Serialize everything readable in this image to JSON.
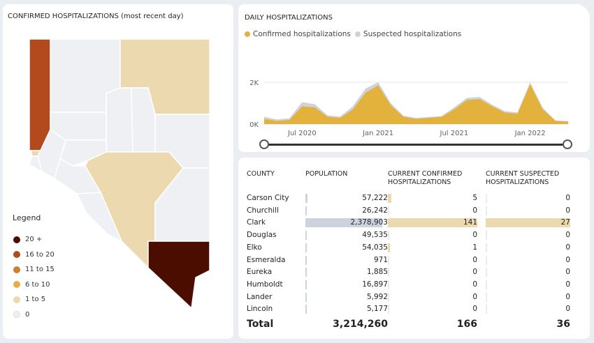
{
  "map": {
    "title": "CONFIRMED HOSPITALIZATIONS (most recent day)",
    "legend_title": "Legend",
    "legend": [
      {
        "label": "20 +",
        "color": "#4a0d00"
      },
      {
        "label": "16 to 20",
        "color": "#b34a1d"
      },
      {
        "label": "11 to 15",
        "color": "#c9822f"
      },
      {
        "label": "6 to 10",
        "color": "#e2ad4a"
      },
      {
        "label": "1 to 5",
        "color": "#ecd9b0"
      },
      {
        "label": "0",
        "color": "#eef0f3"
      }
    ]
  },
  "chart": {
    "title": "DAILY HOSPITALIZATIONS",
    "legend": [
      {
        "label": "Confirmed hospitalizations",
        "color": "#e3b23c"
      },
      {
        "label": "Suspected hospitalizations",
        "color": "#cfd2d8"
      }
    ]
  },
  "chart_data": {
    "type": "area",
    "title": "DAILY HOSPITALIZATIONS",
    "y_ticks": [
      "0K",
      "2K"
    ],
    "x_ticks": [
      "Jul 2020",
      "Jan 2021",
      "Jul 2021",
      "Jan 2022"
    ],
    "ylim": [
      0,
      2400
    ],
    "x": [
      "2020-04",
      "2020-05",
      "2020-06",
      "2020-07",
      "2020-08",
      "2020-09",
      "2020-10",
      "2020-11",
      "2020-12",
      "2021-01",
      "2021-02",
      "2021-03",
      "2021-04",
      "2021-05",
      "2021-06",
      "2021-07",
      "2021-08",
      "2021-09",
      "2021-10",
      "2021-11",
      "2021-12",
      "2022-01",
      "2022-02",
      "2022-03",
      "2022-04"
    ],
    "series": [
      {
        "name": "Confirmed hospitalizations",
        "values": [
          250,
          150,
          200,
          850,
          800,
          350,
          300,
          700,
          1500,
          1850,
          900,
          350,
          250,
          300,
          350,
          700,
          1150,
          1200,
          850,
          550,
          500,
          1900,
          700,
          150,
          120
        ]
      },
      {
        "name": "Suspected hospitalizations",
        "values": [
          350,
          220,
          280,
          1050,
          950,
          420,
          360,
          850,
          1700,
          2000,
          1000,
          400,
          300,
          340,
          380,
          800,
          1250,
          1300,
          930,
          620,
          560,
          2000,
          780,
          180,
          140
        ]
      }
    ]
  },
  "table": {
    "headers": {
      "county": "COUNTY",
      "population": "POPULATION",
      "confirmed_1": "CURRENT CONFIRMED",
      "confirmed_2": "HOSPITALIZATIONS",
      "suspected_1": "CURRENT SUSPECTED",
      "suspected_2": "HOSPITALIZATIONS"
    },
    "rows": [
      {
        "county": "Carson City",
        "population": "57,222",
        "confirmed": "5",
        "suspected": "0"
      },
      {
        "county": "Churchill",
        "population": "26,242",
        "confirmed": "0",
        "suspected": "0"
      },
      {
        "county": "Clark",
        "population": "2,378,903",
        "confirmed": "141",
        "suspected": "27"
      },
      {
        "county": "Douglas",
        "population": "49,535",
        "confirmed": "0",
        "suspected": "0"
      },
      {
        "county": "Elko",
        "population": "54,035",
        "confirmed": "1",
        "suspected": "0"
      },
      {
        "county": "Esmeralda",
        "population": "971",
        "confirmed": "0",
        "suspected": "0"
      },
      {
        "county": "Eureka",
        "population": "1,885",
        "confirmed": "0",
        "suspected": "0"
      },
      {
        "county": "Humboldt",
        "population": "16,897",
        "confirmed": "0",
        "suspected": "0"
      },
      {
        "county": "Lander",
        "population": "5,992",
        "confirmed": "0",
        "suspected": "0"
      },
      {
        "county": "Lincoln",
        "population": "5,177",
        "confirmed": "0",
        "suspected": "0"
      }
    ],
    "total": {
      "label": "Total",
      "population": "3,214,260",
      "confirmed": "166",
      "suspected": "36"
    }
  }
}
